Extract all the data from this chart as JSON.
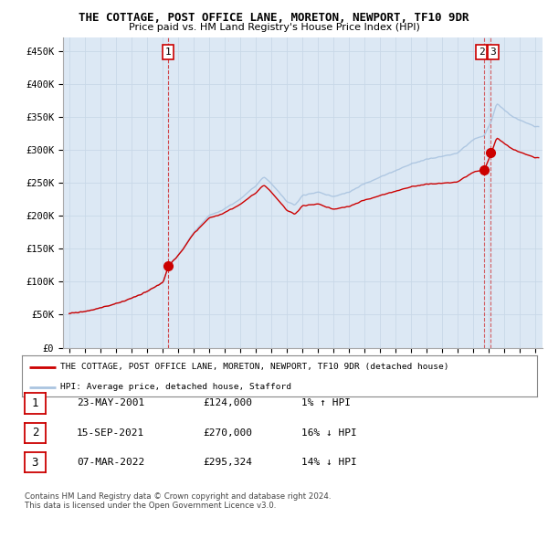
{
  "title": "THE COTTAGE, POST OFFICE LANE, MORETON, NEWPORT, TF10 9DR",
  "subtitle": "Price paid vs. HM Land Registry's House Price Index (HPI)",
  "ylim": [
    0,
    470000
  ],
  "yticks": [
    0,
    50000,
    100000,
    150000,
    200000,
    250000,
    300000,
    350000,
    400000,
    450000
  ],
  "ytick_labels": [
    "£0",
    "£50K",
    "£100K",
    "£150K",
    "£200K",
    "£250K",
    "£300K",
    "£350K",
    "£400K",
    "£450K"
  ],
  "hpi_color": "#aac4e0",
  "price_color": "#cc0000",
  "marker_color": "#cc0000",
  "vline_color": "#cc0000",
  "grid_color": "#c8d8e8",
  "bg_color": "#dce8f4",
  "plot_bg": "#dce8f4",
  "legend_box_color": "#000000",
  "transaction1": {
    "date": "23-MAY-2001",
    "price": 124000,
    "price_str": "£124,000",
    "hpi_pct": "1%",
    "direction": "↑",
    "x": 2001.37
  },
  "transaction2": {
    "date": "15-SEP-2021",
    "price": 270000,
    "price_str": "£270,000",
    "hpi_pct": "16%",
    "direction": "↓",
    "x": 2021.71
  },
  "transaction3": {
    "date": "07-MAR-2022",
    "price": 295324,
    "price_str": "£295,324",
    "hpi_pct": "14%",
    "direction": "↓",
    "x": 2022.17
  },
  "footer1": "Contains HM Land Registry data © Crown copyright and database right 2024.",
  "footer2": "This data is licensed under the Open Government Licence v3.0.",
  "legend_line1": "THE COTTAGE, POST OFFICE LANE, MORETON, NEWPORT, TF10 9DR (detached house)",
  "legend_line2": "HPI: Average price, detached house, Stafford",
  "xmin": 1994.6,
  "xmax": 2025.5
}
